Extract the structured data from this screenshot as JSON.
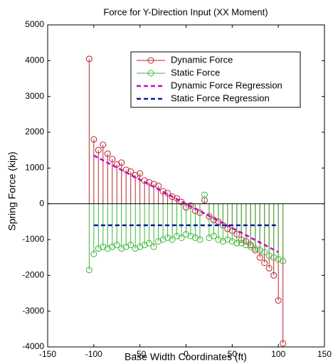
{
  "chart_data": {
    "type": "stem",
    "title": "Force for Y-Direction Input (XX Moment)",
    "xlabel": "Base Width Coordinates (ft)",
    "ylabel": "Spring Force (kip)",
    "xlim": [
      -150,
      150
    ],
    "xticks": [
      -150,
      -100,
      -50,
      0,
      50,
      100,
      150
    ],
    "ylim": [
      -4000,
      5000
    ],
    "yticks": [
      -4000,
      -3000,
      -2000,
      -1000,
      0,
      1000,
      2000,
      3000,
      4000,
      5000
    ],
    "legend": "upper right",
    "series": [
      {
        "name": "Dynamic Force",
        "color": "#b8252a",
        "kind": "stem",
        "x": [
          -105,
          -100,
          -95,
          -90,
          -85,
          -80,
          -75,
          -70,
          -65,
          -60,
          -55,
          -50,
          -45,
          -40,
          -35,
          -30,
          -25,
          -20,
          -15,
          -10,
          -5,
          0,
          5,
          10,
          15,
          20,
          25,
          30,
          35,
          40,
          45,
          50,
          55,
          60,
          65,
          70,
          75,
          80,
          85,
          90,
          95,
          100,
          105
        ],
        "values": [
          4050,
          1800,
          1500,
          1650,
          1400,
          1250,
          1100,
          1150,
          950,
          900,
          800,
          850,
          650,
          600,
          550,
          500,
          350,
          300,
          200,
          150,
          50,
          -100,
          -50,
          -200,
          -250,
          100,
          -350,
          -450,
          -500,
          -600,
          -700,
          -750,
          -850,
          -1000,
          -1050,
          -1150,
          -1300,
          -1500,
          -1650,
          -1800,
          -2000,
          -2700,
          -3900
        ]
      },
      {
        "name": "Static Force",
        "color": "#3cb83c",
        "kind": "stem",
        "x": [
          -105,
          -100,
          -95,
          -90,
          -85,
          -80,
          -75,
          -70,
          -65,
          -60,
          -55,
          -50,
          -45,
          -40,
          -35,
          -30,
          -25,
          -20,
          -15,
          -10,
          -5,
          0,
          5,
          10,
          15,
          20,
          25,
          30,
          35,
          40,
          45,
          50,
          55,
          60,
          65,
          70,
          75,
          80,
          85,
          90,
          95,
          100,
          105
        ],
        "values": [
          -1850,
          -1400,
          -1250,
          -1200,
          -1250,
          -1200,
          -1150,
          -1250,
          -1200,
          -1150,
          -1250,
          -1200,
          -1150,
          -1100,
          -1200,
          -1050,
          -1000,
          -950,
          -1000,
          -900,
          -950,
          -850,
          -900,
          -950,
          -1000,
          250,
          -950,
          -900,
          -1000,
          -1050,
          -1000,
          -1050,
          -1100,
          -1100,
          -1150,
          -1200,
          -1250,
          -1300,
          -1350,
          -1450,
          -1500,
          -1550,
          -1600
        ]
      },
      {
        "name": "Dynamic Force Regression",
        "color": "#cc00cc",
        "kind": "line",
        "dashed": true,
        "x": [
          -100,
          100
        ],
        "values": [
          1350,
          -1350
        ]
      },
      {
        "name": "Static Force Regression",
        "color": "#0a1aa0",
        "kind": "line",
        "dashed": true,
        "x": [
          -100,
          100
        ],
        "values": [
          -600,
          -600
        ]
      }
    ]
  }
}
